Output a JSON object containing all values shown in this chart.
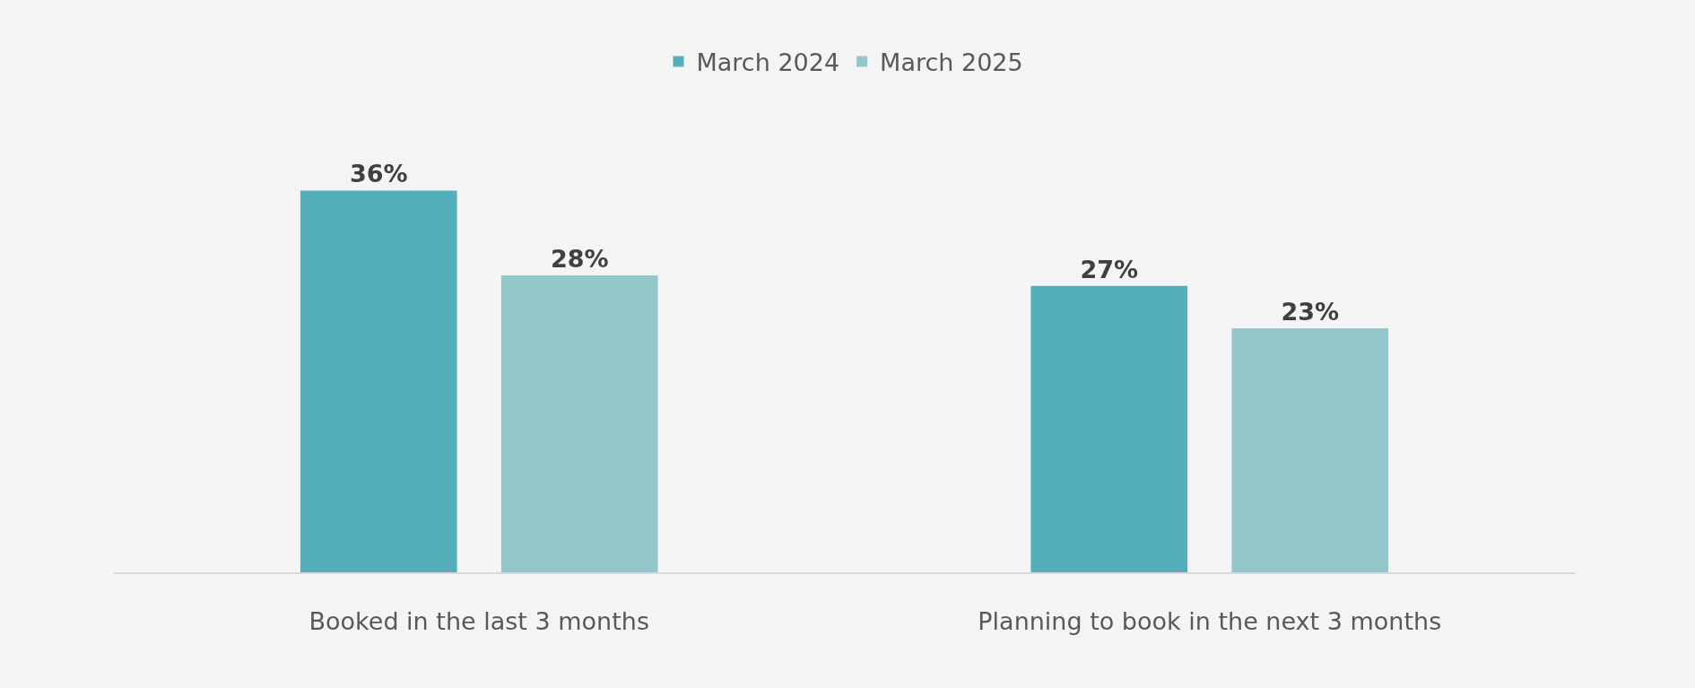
{
  "chart_data": {
    "type": "bar",
    "categories": [
      "Booked in the last 3 months",
      "Planning to book in the next 3 months"
    ],
    "series": [
      {
        "name": "March 2024",
        "color": "#53b0bb",
        "values": [
          36,
          27
        ],
        "value_labels": [
          "36%",
          "27%"
        ]
      },
      {
        "name": "March 2025",
        "color": "#93c8ca",
        "values": [
          28,
          23
        ],
        "value_labels": [
          "28%",
          "23%"
        ]
      }
    ],
    "legend": "top"
  }
}
